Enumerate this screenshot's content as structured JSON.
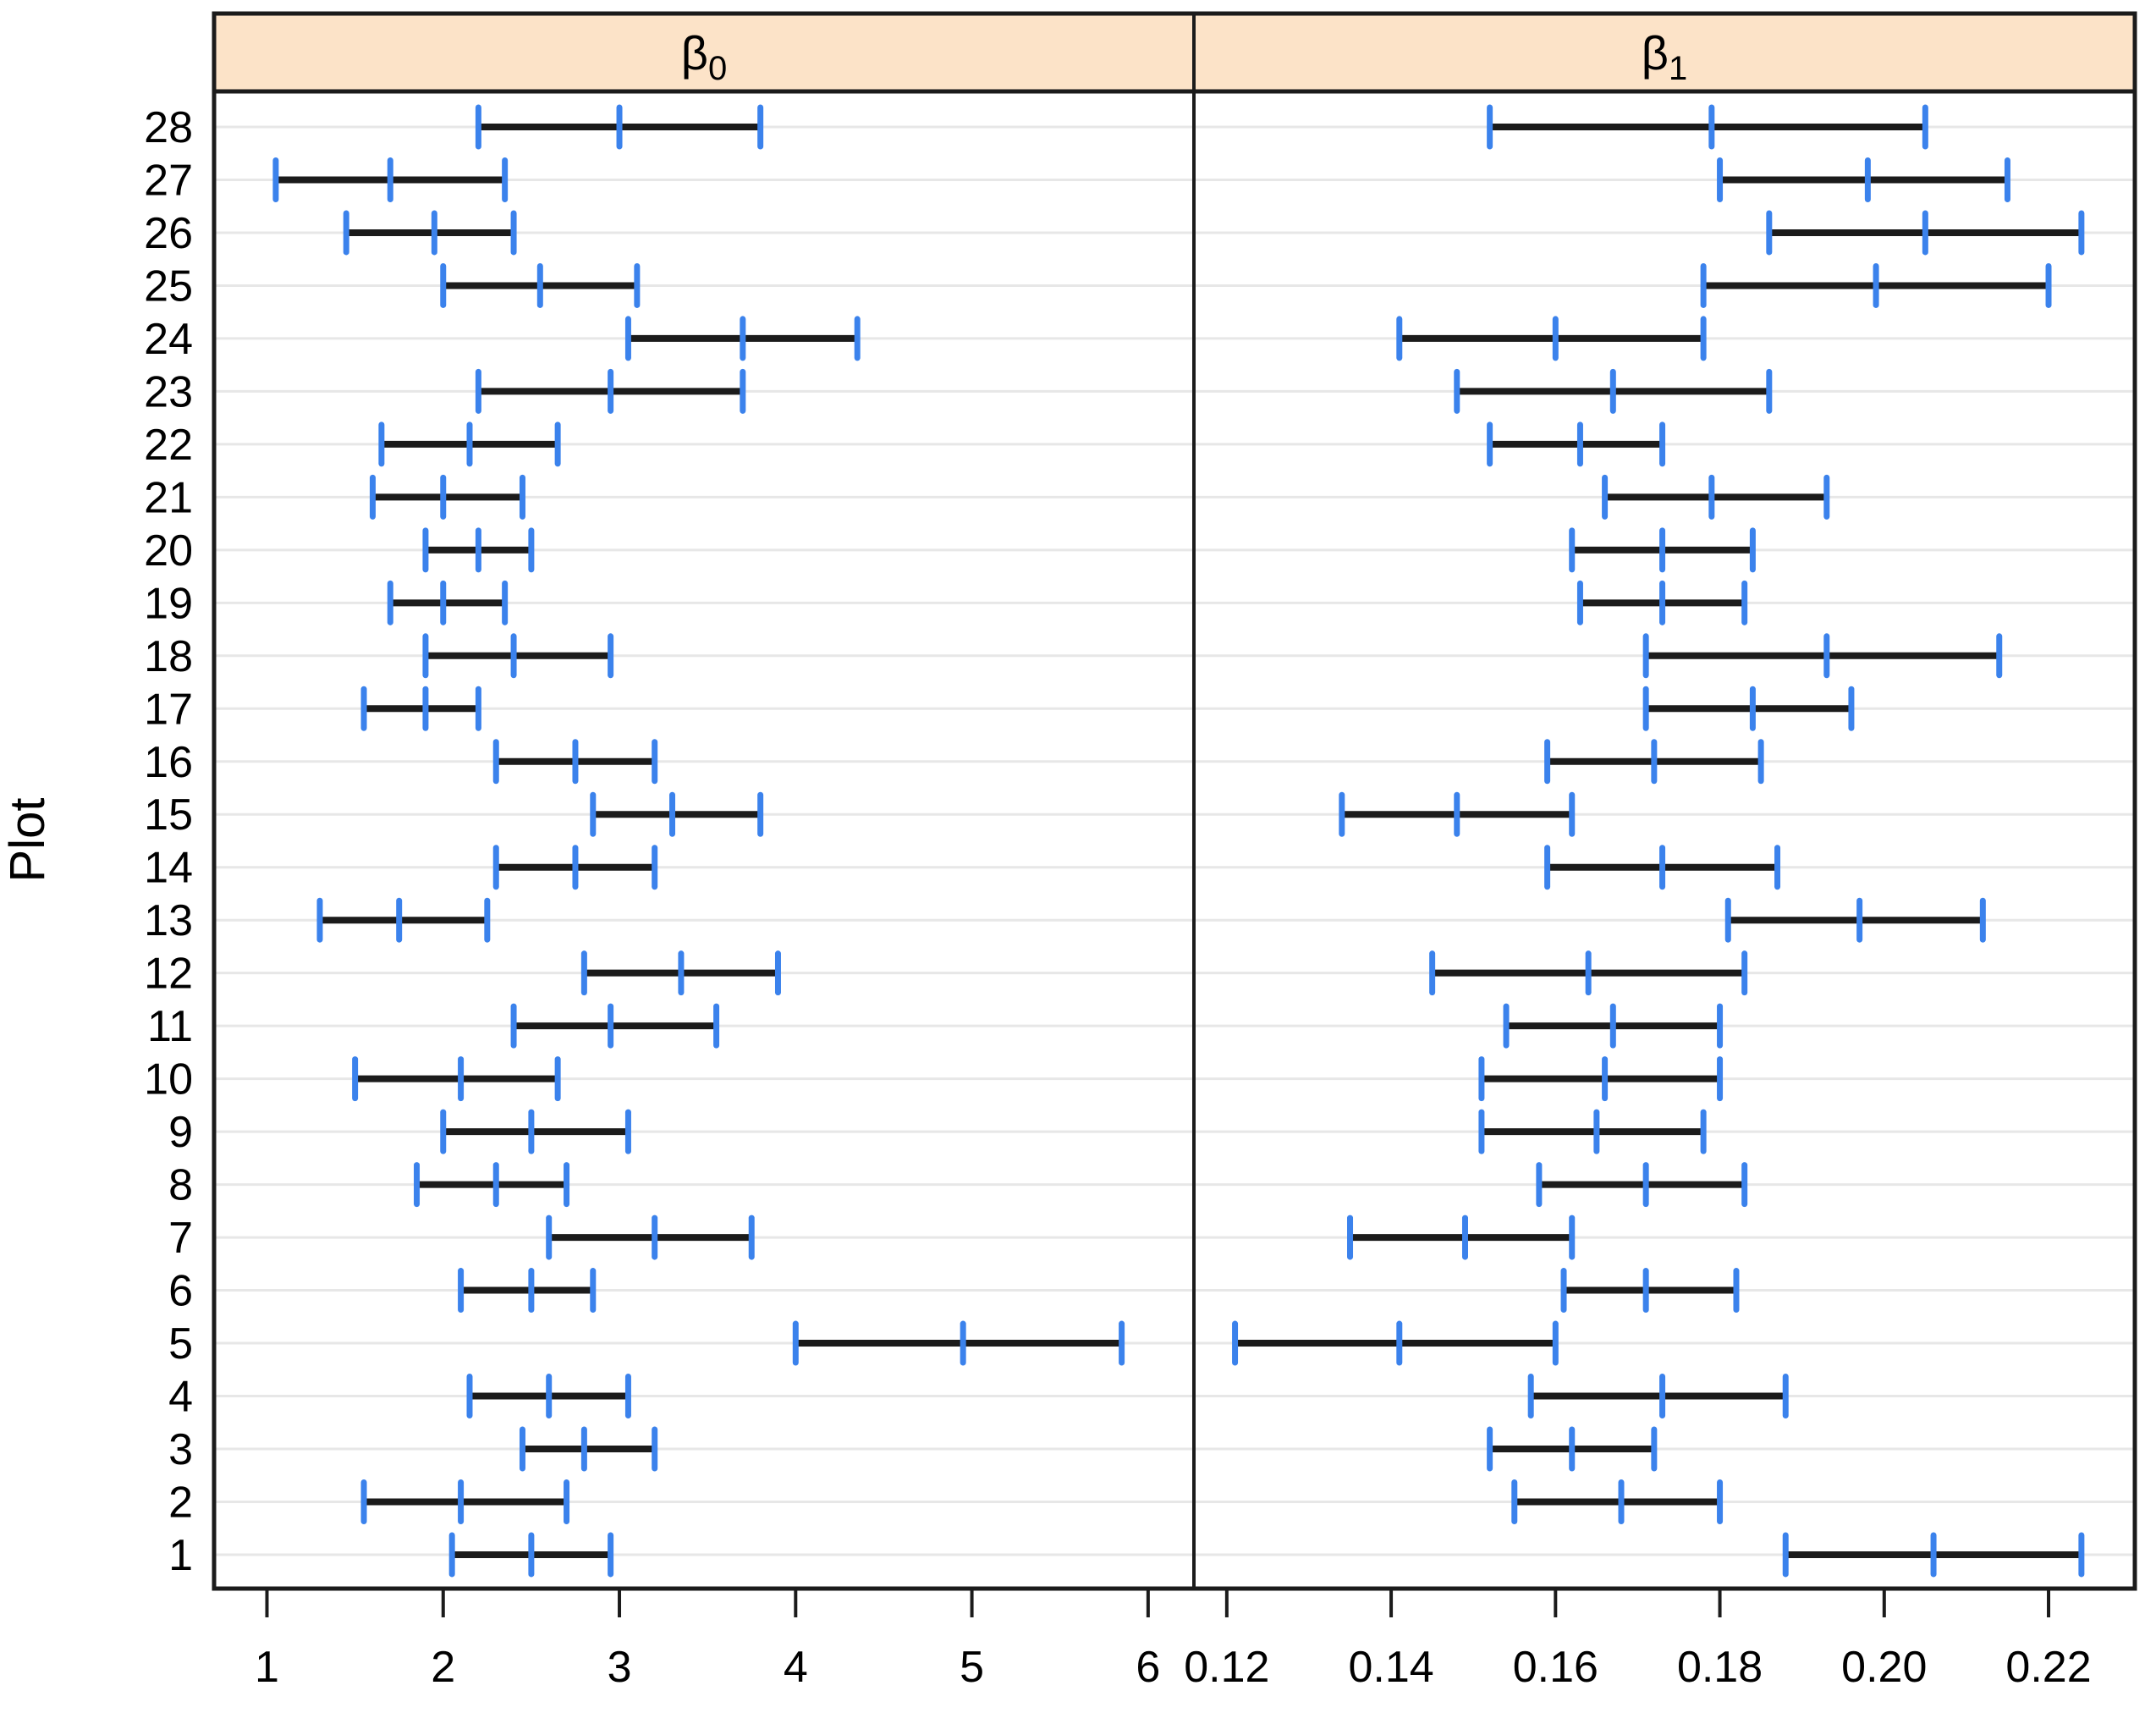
{
  "figure": {
    "y_axis_title": "Plot",
    "colors": {
      "header_fill": "#fce3c8",
      "border": "#1b1b1b",
      "bar": "#1b1b1b",
      "endpoint_tick": "#3b82ec",
      "gridline": "#e7e7e7",
      "background": "#ffffff"
    }
  },
  "chart_data": {
    "type": "interval-dotplot",
    "title": "",
    "ylabel": "Plot",
    "grid": "light horizontal gridline per row",
    "legend": "none",
    "row_order": "plot 1 at bottom, plot 28 at top",
    "categories": [
      1,
      2,
      3,
      4,
      5,
      6,
      7,
      8,
      9,
      10,
      11,
      12,
      13,
      14,
      15,
      16,
      17,
      18,
      19,
      20,
      21,
      22,
      23,
      24,
      25,
      26,
      27,
      28
    ],
    "y_tick_labels": [
      "1",
      "2",
      "3",
      "4",
      "5",
      "6",
      "7",
      "8",
      "9",
      "10",
      "11",
      "12",
      "13",
      "14",
      "15",
      "16",
      "17",
      "18",
      "19",
      "20",
      "21",
      "22",
      "23",
      "24",
      "25",
      "26",
      "27",
      "28"
    ],
    "panels": [
      {
        "label_base": "β",
        "label_sub": "0",
        "label": "β0",
        "xlim": [
          0.7,
          6.26
        ],
        "x_ticks": [
          1,
          2,
          3,
          4,
          5,
          6
        ],
        "x_tick_labels": [
          "1",
          "2",
          "3",
          "4",
          "5",
          "6"
        ],
        "intervals": [
          {
            "plot": 1,
            "low": 2.05,
            "mid": 2.5,
            "high": 2.95
          },
          {
            "plot": 2,
            "low": 1.55,
            "mid": 2.1,
            "high": 2.7
          },
          {
            "plot": 3,
            "low": 2.45,
            "mid": 2.8,
            "high": 3.2
          },
          {
            "plot": 4,
            "low": 2.15,
            "mid": 2.6,
            "high": 3.05
          },
          {
            "plot": 5,
            "low": 4.0,
            "mid": 4.95,
            "high": 5.85
          },
          {
            "plot": 6,
            "low": 2.1,
            "mid": 2.5,
            "high": 2.85
          },
          {
            "plot": 7,
            "low": 2.6,
            "mid": 3.2,
            "high": 3.75
          },
          {
            "plot": 8,
            "low": 1.85,
            "mid": 2.3,
            "high": 2.7
          },
          {
            "plot": 9,
            "low": 2.0,
            "mid": 2.5,
            "high": 3.05
          },
          {
            "plot": 10,
            "low": 1.5,
            "mid": 2.1,
            "high": 2.65
          },
          {
            "plot": 11,
            "low": 2.4,
            "mid": 2.95,
            "high": 3.55
          },
          {
            "plot": 12,
            "low": 2.8,
            "mid": 3.35,
            "high": 3.9
          },
          {
            "plot": 13,
            "low": 1.3,
            "mid": 1.75,
            "high": 2.25
          },
          {
            "plot": 14,
            "low": 2.3,
            "mid": 2.75,
            "high": 3.2
          },
          {
            "plot": 15,
            "low": 2.85,
            "mid": 3.3,
            "high": 3.8
          },
          {
            "plot": 16,
            "low": 2.3,
            "mid": 2.75,
            "high": 3.2
          },
          {
            "plot": 17,
            "low": 1.55,
            "mid": 1.9,
            "high": 2.2
          },
          {
            "plot": 18,
            "low": 1.9,
            "mid": 2.4,
            "high": 2.95
          },
          {
            "plot": 19,
            "low": 1.7,
            "mid": 2.0,
            "high": 2.35
          },
          {
            "plot": 20,
            "low": 1.9,
            "mid": 2.2,
            "high": 2.5
          },
          {
            "plot": 21,
            "low": 1.6,
            "mid": 2.0,
            "high": 2.45
          },
          {
            "plot": 22,
            "low": 1.65,
            "mid": 2.15,
            "high": 2.65
          },
          {
            "plot": 23,
            "low": 2.2,
            "mid": 2.95,
            "high": 3.7
          },
          {
            "plot": 24,
            "low": 3.05,
            "mid": 3.7,
            "high": 4.35
          },
          {
            "plot": 25,
            "low": 2.0,
            "mid": 2.55,
            "high": 3.1
          },
          {
            "plot": 26,
            "low": 1.45,
            "mid": 1.95,
            "high": 2.4
          },
          {
            "plot": 27,
            "low": 1.05,
            "mid": 1.7,
            "high": 2.35
          },
          {
            "plot": 28,
            "low": 2.2,
            "mid": 3.0,
            "high": 3.8
          }
        ]
      },
      {
        "label_base": "β",
        "label_sub": "1",
        "label": "β1",
        "xlim": [
          0.116,
          0.2305
        ],
        "x_ticks": [
          0.12,
          0.14,
          0.16,
          0.18,
          0.2,
          0.22
        ],
        "x_tick_labels": [
          "0.12",
          "0.14",
          "0.16",
          "0.18",
          "0.20",
          "0.22"
        ],
        "intervals": [
          {
            "plot": 1,
            "low": 0.188,
            "mid": 0.206,
            "high": 0.224
          },
          {
            "plot": 2,
            "low": 0.155,
            "mid": 0.168,
            "high": 0.18
          },
          {
            "plot": 3,
            "low": 0.152,
            "mid": 0.162,
            "high": 0.172
          },
          {
            "plot": 4,
            "low": 0.157,
            "mid": 0.173,
            "high": 0.188
          },
          {
            "plot": 5,
            "low": 0.121,
            "mid": 0.141,
            "high": 0.16
          },
          {
            "plot": 6,
            "low": 0.161,
            "mid": 0.171,
            "high": 0.182
          },
          {
            "plot": 7,
            "low": 0.135,
            "mid": 0.149,
            "high": 0.162
          },
          {
            "plot": 8,
            "low": 0.158,
            "mid": 0.171,
            "high": 0.183
          },
          {
            "plot": 9,
            "low": 0.151,
            "mid": 0.165,
            "high": 0.178
          },
          {
            "plot": 10,
            "low": 0.151,
            "mid": 0.166,
            "high": 0.18
          },
          {
            "plot": 11,
            "low": 0.154,
            "mid": 0.167,
            "high": 0.18
          },
          {
            "plot": 12,
            "low": 0.145,
            "mid": 0.164,
            "high": 0.183
          },
          {
            "plot": 13,
            "low": 0.181,
            "mid": 0.197,
            "high": 0.212
          },
          {
            "plot": 14,
            "low": 0.159,
            "mid": 0.173,
            "high": 0.187
          },
          {
            "plot": 15,
            "low": 0.134,
            "mid": 0.148,
            "high": 0.162
          },
          {
            "plot": 16,
            "low": 0.159,
            "mid": 0.172,
            "high": 0.185
          },
          {
            "plot": 17,
            "low": 0.171,
            "mid": 0.184,
            "high": 0.196
          },
          {
            "plot": 18,
            "low": 0.171,
            "mid": 0.193,
            "high": 0.214
          },
          {
            "plot": 19,
            "low": 0.163,
            "mid": 0.173,
            "high": 0.183
          },
          {
            "plot": 20,
            "low": 0.162,
            "mid": 0.173,
            "high": 0.184
          },
          {
            "plot": 21,
            "low": 0.166,
            "mid": 0.179,
            "high": 0.193
          },
          {
            "plot": 22,
            "low": 0.152,
            "mid": 0.163,
            "high": 0.173
          },
          {
            "plot": 23,
            "low": 0.148,
            "mid": 0.167,
            "high": 0.186
          },
          {
            "plot": 24,
            "low": 0.141,
            "mid": 0.16,
            "high": 0.178
          },
          {
            "plot": 25,
            "low": 0.178,
            "mid": 0.199,
            "high": 0.22
          },
          {
            "plot": 26,
            "low": 0.186,
            "mid": 0.205,
            "high": 0.224
          },
          {
            "plot": 27,
            "low": 0.18,
            "mid": 0.198,
            "high": 0.215
          },
          {
            "plot": 28,
            "low": 0.152,
            "mid": 0.179,
            "high": 0.205
          }
        ]
      }
    ]
  }
}
